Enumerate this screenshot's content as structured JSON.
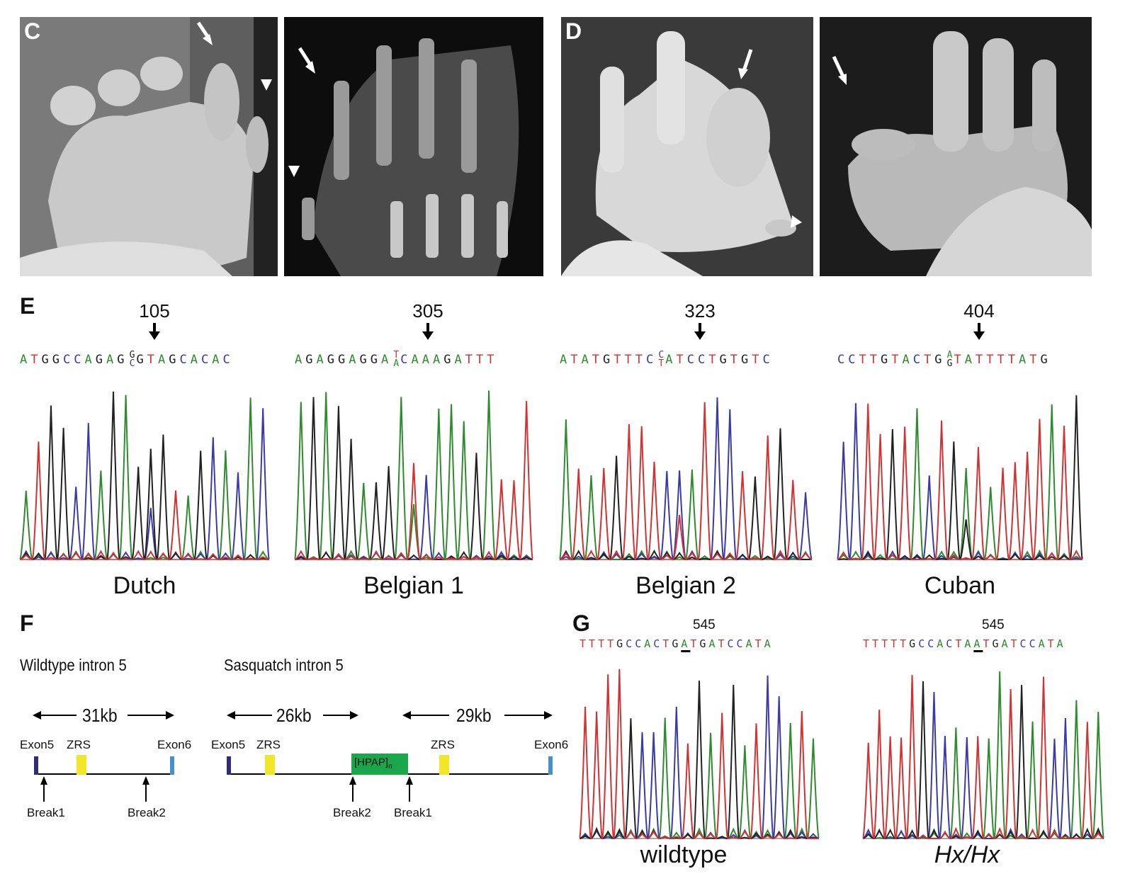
{
  "panels": {
    "C": {
      "letter": "C"
    },
    "D": {
      "letter": "D"
    },
    "E": {
      "letter": "E"
    },
    "F": {
      "letter": "F"
    },
    "G": {
      "letter": "G"
    }
  },
  "colors": {
    "A": "#2e8b2e",
    "C": "#3a3aa8",
    "G": "#222222",
    "T": "#d23232",
    "exon_dark": "#2c2c7a",
    "exon_light": "#4a90c8",
    "zrs": "#f2e62a",
    "hpap": "#1aa64a"
  },
  "sequencing": [
    {
      "name": "Dutch",
      "position": "105",
      "seq_before": "ATGGCCAGAG",
      "het_top": "G",
      "het_bottom": "C",
      "seq_after": "GTAGCACAC"
    },
    {
      "name": "Belgian 1",
      "position": "305",
      "seq_before": "AGAGGAGGA",
      "het_top": "T",
      "het_bottom": "A",
      "seq_after": "CAAAGATTT"
    },
    {
      "name": "Belgian 2",
      "position": "323",
      "seq_before": "ATATGTTTC",
      "het_top": "C",
      "het_bottom": "T",
      "seq_after": "ATCCTGTGTC"
    },
    {
      "name": "Cuban",
      "position": "404",
      "seq_before": "CCTTGTACTG",
      "het_top": "A",
      "het_bottom": "G",
      "seq_after": "TATTTTATG"
    }
  ],
  "intron": {
    "wildtype": {
      "title": "Wildtype intron 5",
      "span": "31kb",
      "exon5": "Exon5",
      "zrs": "ZRS",
      "exon6": "Exon6",
      "break1": "Break1",
      "break2": "Break2"
    },
    "sasquatch": {
      "title": "Sasquatch intron 5",
      "span_left": "26kb",
      "span_right": "29kb",
      "exon5": "Exon5",
      "zrs_left": "ZRS",
      "insert": "[HPAP]",
      "insert_sub": "n",
      "zrs_right": "ZRS",
      "exon6": "Exon6",
      "break2": "Break2",
      "break1": "Break1"
    }
  },
  "mouse": [
    {
      "name": "wildtype",
      "position": "545",
      "sequence": "TTTTGCCACTGATGATCCATA",
      "mark_index": 11
    },
    {
      "name": "Hx/Hx",
      "position": "545",
      "sequence": "TTTTTGCCACTAATGATCCATA",
      "mark_index": 12
    }
  ]
}
